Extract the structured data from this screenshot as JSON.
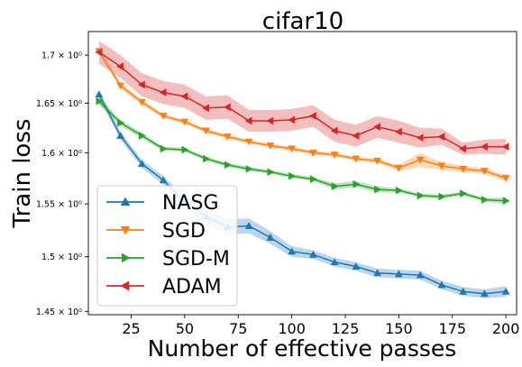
{
  "chart_data": {
    "type": "line",
    "title": "cifar10",
    "xlabel": "Number of effective passes",
    "ylabel": "Train loss",
    "yscale": "log",
    "xlim": [
      5,
      205
    ],
    "ylim": [
      1.447,
      1.725
    ],
    "x_ticks": [
      25,
      50,
      75,
      100,
      125,
      150,
      175,
      200
    ],
    "x_tick_labels": [
      "25",
      "50",
      "75",
      "100",
      "125",
      "150",
      "175",
      "200"
    ],
    "y_ticks": [
      1.45,
      1.5,
      1.55,
      1.6,
      1.65,
      1.7
    ],
    "y_tick_labels": [
      "1.45 × 10⁰",
      "1.5 × 10⁰",
      "1.55 × 10⁰",
      "1.6 × 10⁰",
      "1.65 × 10⁰",
      "1.7 × 10⁰"
    ],
    "grid": false,
    "legend_position": "lower-left",
    "x": [
      10,
      20,
      30,
      40,
      50,
      60,
      70,
      80,
      90,
      100,
      110,
      120,
      130,
      140,
      150,
      160,
      170,
      180,
      190,
      200
    ],
    "series": [
      {
        "name": "NASG",
        "color": "#1f77b4",
        "marker": "triangle-up",
        "values": [
          1.659,
          1.617,
          1.589,
          1.573,
          1.552,
          1.538,
          1.528,
          1.529,
          1.518,
          1.505,
          1.502,
          1.495,
          1.491,
          1.485,
          1.484,
          1.483,
          1.474,
          1.468,
          1.466,
          1.468
        ],
        "band": [
          0.004,
          0.004,
          0.004,
          0.004,
          0.005,
          0.007,
          0.007,
          0.007,
          0.006,
          0.005,
          0.004,
          0.004,
          0.004,
          0.004,
          0.004,
          0.004,
          0.004,
          0.004,
          0.004,
          0.005
        ]
      },
      {
        "name": "SGD",
        "color": "#ff7f0e",
        "marker": "triangle-down",
        "values": [
          1.704,
          1.668,
          1.651,
          1.637,
          1.631,
          1.622,
          1.616,
          1.611,
          1.607,
          1.604,
          1.6,
          1.598,
          1.594,
          1.592,
          1.585,
          1.593,
          1.587,
          1.584,
          1.582,
          1.575
        ],
        "band": [
          0.003,
          0.003,
          0.003,
          0.002,
          0.002,
          0.002,
          0.002,
          0.002,
          0.002,
          0.002,
          0.002,
          0.002,
          0.002,
          0.002,
          0.003,
          0.007,
          0.004,
          0.003,
          0.003,
          0.003
        ]
      },
      {
        "name": "SGD-M",
        "color": "#2ca02c",
        "marker": "triangle-right",
        "values": [
          1.652,
          1.63,
          1.617,
          1.604,
          1.603,
          1.594,
          1.588,
          1.584,
          1.581,
          1.577,
          1.574,
          1.567,
          1.569,
          1.564,
          1.563,
          1.558,
          1.557,
          1.56,
          1.554,
          1.553
        ],
        "band": [
          0.004,
          0.003,
          0.003,
          0.002,
          0.002,
          0.002,
          0.002,
          0.002,
          0.002,
          0.002,
          0.002,
          0.003,
          0.003,
          0.003,
          0.002,
          0.002,
          0.002,
          0.002,
          0.002,
          0.003
        ]
      },
      {
        "name": "ADAM",
        "color": "#d62728",
        "marker": "triangle-left",
        "values": [
          1.703,
          1.688,
          1.669,
          1.661,
          1.657,
          1.645,
          1.646,
          1.632,
          1.632,
          1.633,
          1.637,
          1.622,
          1.617,
          1.626,
          1.621,
          1.615,
          1.616,
          1.604,
          1.606,
          1.606
        ],
        "band": [
          0.012,
          0.012,
          0.012,
          0.012,
          0.012,
          0.012,
          0.012,
          0.011,
          0.011,
          0.011,
          0.011,
          0.011,
          0.011,
          0.011,
          0.011,
          0.01,
          0.008,
          0.006,
          0.007,
          0.008
        ]
      }
    ]
  }
}
